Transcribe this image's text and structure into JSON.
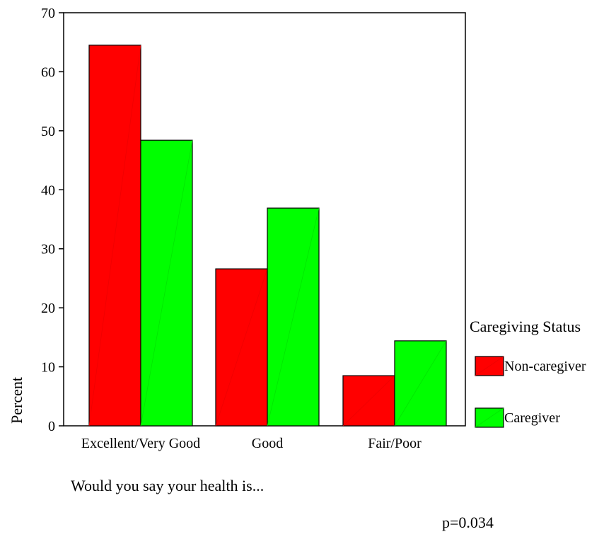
{
  "chart_data": {
    "type": "bar",
    "categories": [
      "Excellent/Very Good",
      "Good",
      "Fair/Poor"
    ],
    "series": [
      {
        "name": "Non-caregiver",
        "values": [
          64.5,
          26.6,
          8.5
        ],
        "color": "#ff0000"
      },
      {
        "name": "Caregiver",
        "values": [
          48.4,
          36.9,
          14.4
        ],
        "color": "#00ff00"
      }
    ],
    "ylabel": "Percent",
    "xlabel": "Would you say your health is...",
    "ylim": [
      0,
      70
    ],
    "yticks": [
      0,
      10,
      20,
      30,
      40,
      50,
      60,
      70
    ],
    "legend_title": "Caregiving Status",
    "legend_position": "right",
    "grid": false,
    "annotation": "p=0.034"
  }
}
